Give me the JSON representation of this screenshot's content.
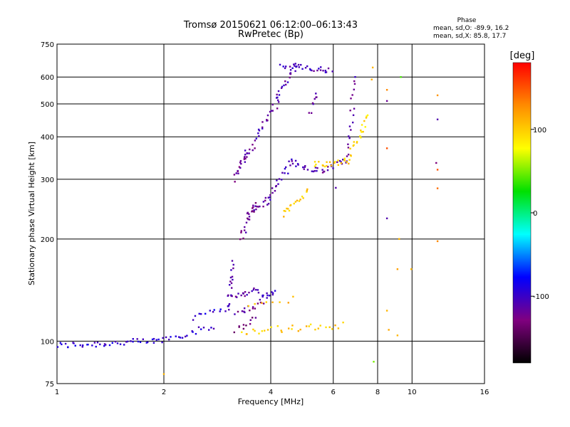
{
  "chart_data": {
    "type": "scatter",
    "title": "Tromsø 20150621 06:12:00–06:13:43",
    "subtitle": "RwPretec (Bp)",
    "xlabel": "Frequency [MHz]",
    "ylabel": "Stationary phase Virtual Height [km]",
    "x_scale": "log",
    "y_scale": "log",
    "xlim": [
      1,
      16
    ],
    "ylim": [
      75,
      750
    ],
    "x_ticks": [
      1,
      2,
      4,
      6,
      8,
      10,
      16
    ],
    "y_ticks": [
      75,
      100,
      200,
      300,
      400,
      500,
      600,
      750
    ],
    "x_tick_labels": [
      "1",
      "2",
      "4",
      "6",
      "8",
      "10",
      "16"
    ],
    "y_tick_labels": [
      "75",
      "100",
      "200",
      "300",
      "400",
      "500",
      "600",
      "750"
    ],
    "grid": true,
    "phase_stats": {
      "title": "Phase",
      "o_line": "mean, sd,O: -89.9, 16.2",
      "x_line": "mean, sd,X:  85.8, 17.7"
    },
    "colorbar": {
      "label": "[deg]",
      "range": [
        -180,
        180
      ],
      "ticks": [
        100,
        0,
        -100
      ],
      "tick_labels": [
        "100",
        "0",
        "-100"
      ],
      "colors": [
        "#ff0000",
        "#ff8c00",
        "#ffff00",
        "#00e000",
        "#00ffff",
        "#0000ff",
        "#800080",
        "#000000"
      ]
    },
    "series": [
      {
        "segments": [
          {
            "f0": 1.0,
            "f1": 1.9,
            "h0": 97,
            "h1": 100,
            "n": 42,
            "phase": -95
          },
          {
            "f0": 1.9,
            "f1": 2.75,
            "h0": 100,
            "h1": 110,
            "n": 22,
            "phase": -100
          },
          {
            "f0": 2.4,
            "f1": 2.9,
            "h0": 118,
            "h1": 126,
            "n": 10,
            "phase": -95
          },
          {
            "f0": 3.0,
            "f1": 3.15,
            "h0": 120,
            "h1": 170,
            "n": 20,
            "phase": -110
          },
          {
            "f0": 3.1,
            "f1": 3.7,
            "h0": 135,
            "h1": 142,
            "n": 18,
            "phase": -115
          },
          {
            "f0": 3.2,
            "f1": 3.8,
            "h0": 122,
            "h1": 128,
            "n": 14,
            "phase": -120
          },
          {
            "f0": 3.2,
            "f1": 3.6,
            "h0": 108,
            "h1": 118,
            "n": 10,
            "phase": -130
          },
          {
            "f0": 3.75,
            "f1": 4.1,
            "h0": 135,
            "h1": 138,
            "n": 12,
            "phase": -105
          },
          {
            "f0": 3.3,
            "f1": 3.6,
            "h0": 200,
            "h1": 255,
            "n": 18,
            "phase": -120
          },
          {
            "f0": 3.45,
            "f1": 3.95,
            "h0": 238,
            "h1": 260,
            "n": 16,
            "phase": -115
          },
          {
            "f0": 3.9,
            "f1": 4.6,
            "h0": 260,
            "h1": 340,
            "n": 22,
            "phase": -110
          },
          {
            "f0": 4.6,
            "f1": 5.6,
            "h0": 335,
            "h1": 315,
            "n": 18,
            "phase": -110
          },
          {
            "f0": 5.6,
            "f1": 6.6,
            "h0": 318,
            "h1": 345,
            "n": 14,
            "phase": -115
          },
          {
            "f0": 6.6,
            "f1": 6.9,
            "h0": 345,
            "h1": 600,
            "n": 18,
            "phase": -110
          },
          {
            "f0": 3.15,
            "f1": 3.45,
            "h0": 300,
            "h1": 365,
            "n": 14,
            "phase": -115
          },
          {
            "f0": 3.3,
            "f1": 3.6,
            "h0": 330,
            "h1": 380,
            "n": 12,
            "phase": -120
          },
          {
            "f0": 3.6,
            "f1": 4.2,
            "h0": 390,
            "h1": 510,
            "n": 20,
            "phase": -110
          },
          {
            "f0": 4.1,
            "f1": 4.7,
            "h0": 510,
            "h1": 650,
            "n": 20,
            "phase": -110
          },
          {
            "f0": 4.3,
            "f1": 5.9,
            "h0": 648,
            "h1": 625,
            "n": 30,
            "phase": -105
          },
          {
            "f0": 5.2,
            "f1": 5.4,
            "h0": 470,
            "h1": 540,
            "n": 8,
            "phase": -110
          }
        ]
      },
      {
        "segments": [
          {
            "f0": 4.3,
            "f1": 5.1,
            "h0": 235,
            "h1": 275,
            "n": 18,
            "phase": 100
          },
          {
            "f0": 5.3,
            "f1": 6.6,
            "h0": 330,
            "h1": 340,
            "n": 20,
            "phase": 100
          },
          {
            "f0": 6.5,
            "f1": 7.6,
            "h0": 340,
            "h1": 460,
            "n": 22,
            "phase": 95
          },
          {
            "f0": 3.3,
            "f1": 6.4,
            "h0": 107,
            "h1": 111,
            "n": 30,
            "phase": 100
          },
          {
            "f0": 3.5,
            "f1": 4.6,
            "h0": 125,
            "h1": 133,
            "n": 8,
            "phase": 110
          }
        ]
      }
    ],
    "isolated_points": [
      {
        "x": 7.75,
        "y": 640,
        "phase": 110
      },
      {
        "x": 7.7,
        "y": 590,
        "phase": 115
      },
      {
        "x": 8.5,
        "y": 550,
        "phase": 130
      },
      {
        "x": 8.5,
        "y": 510,
        "phase": -120
      },
      {
        "x": 9.3,
        "y": 600,
        "phase": 40
      },
      {
        "x": 11.8,
        "y": 530,
        "phase": 125
      },
      {
        "x": 11.8,
        "y": 450,
        "phase": -110
      },
      {
        "x": 8.5,
        "y": 370,
        "phase": 150
      },
      {
        "x": 11.7,
        "y": 335,
        "phase": -130
      },
      {
        "x": 11.8,
        "y": 320,
        "phase": 150
      },
      {
        "x": 11.8,
        "y": 282,
        "phase": 140
      },
      {
        "x": 8.5,
        "y": 230,
        "phase": -110
      },
      {
        "x": 9.2,
        "y": 200,
        "phase": 110
      },
      {
        "x": 11.8,
        "y": 197,
        "phase": 130
      },
      {
        "x": 9.1,
        "y": 163,
        "phase": 120
      },
      {
        "x": 9.95,
        "y": 163,
        "phase": 110
      },
      {
        "x": 8.5,
        "y": 123,
        "phase": 110
      },
      {
        "x": 8.6,
        "y": 108,
        "phase": 115
      },
      {
        "x": 9.1,
        "y": 104,
        "phase": 110
      },
      {
        "x": 7.8,
        "y": 87,
        "phase": 50
      },
      {
        "x": 6.1,
        "y": 283,
        "phase": -110
      },
      {
        "x": 2.0,
        "y": 80,
        "phase": 110
      }
    ]
  }
}
